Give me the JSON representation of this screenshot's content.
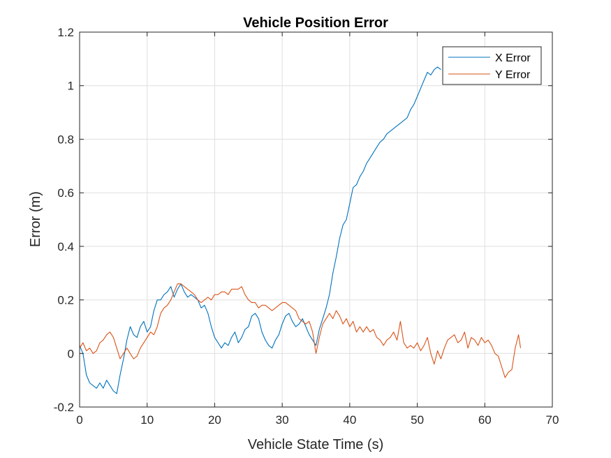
{
  "chart_data": {
    "type": "line",
    "title": "Vehicle Position Error",
    "xlabel": "Vehicle State Time (s)",
    "ylabel": "Error (m)",
    "xlim": [
      0,
      70
    ],
    "ylim": [
      -0.2,
      1.2
    ],
    "xticks": [
      0,
      10,
      20,
      30,
      40,
      50,
      60,
      70
    ],
    "xtick_labels": [
      "0",
      "10",
      "20",
      "30",
      "40",
      "50",
      "60",
      "70"
    ],
    "yticks": [
      -0.2,
      0,
      0.2,
      0.4,
      0.6,
      0.8,
      1,
      1.2
    ],
    "ytick_labels": [
      "-0.2",
      "0",
      "0.2",
      "0.4",
      "0.6",
      "0.8",
      "1",
      "1.2"
    ],
    "grid": true,
    "legend_position": "top-right",
    "series": [
      {
        "name": "X Error",
        "color": "#0072BD",
        "points": [
          [
            0,
            0.03
          ],
          [
            0.5,
            0.0
          ],
          [
            1,
            -0.08
          ],
          [
            1.5,
            -0.11
          ],
          [
            2,
            -0.12
          ],
          [
            2.5,
            -0.13
          ],
          [
            3,
            -0.11
          ],
          [
            3.5,
            -0.13
          ],
          [
            4,
            -0.1
          ],
          [
            4.5,
            -0.12
          ],
          [
            5,
            -0.14
          ],
          [
            5.5,
            -0.15
          ],
          [
            6,
            -0.08
          ],
          [
            6.5,
            -0.02
          ],
          [
            7,
            0.05
          ],
          [
            7.5,
            0.1
          ],
          [
            8,
            0.07
          ],
          [
            8.5,
            0.06
          ],
          [
            9,
            0.1
          ],
          [
            9.5,
            0.12
          ],
          [
            10,
            0.08
          ],
          [
            10.5,
            0.1
          ],
          [
            11,
            0.16
          ],
          [
            11.5,
            0.2
          ],
          [
            12,
            0.2
          ],
          [
            12.5,
            0.22
          ],
          [
            13,
            0.23
          ],
          [
            13.5,
            0.25
          ],
          [
            14,
            0.21
          ],
          [
            14.5,
            0.24
          ],
          [
            15,
            0.26
          ],
          [
            15.5,
            0.23
          ],
          [
            16,
            0.21
          ],
          [
            16.5,
            0.22
          ],
          [
            17,
            0.21
          ],
          [
            17.5,
            0.2
          ],
          [
            18,
            0.17
          ],
          [
            18.5,
            0.18
          ],
          [
            19,
            0.15
          ],
          [
            19.5,
            0.1
          ],
          [
            20,
            0.06
          ],
          [
            20.5,
            0.04
          ],
          [
            21,
            0.02
          ],
          [
            21.5,
            0.04
          ],
          [
            22,
            0.03
          ],
          [
            22.5,
            0.06
          ],
          [
            23,
            0.08
          ],
          [
            23.5,
            0.04
          ],
          [
            24,
            0.06
          ],
          [
            24.5,
            0.09
          ],
          [
            25,
            0.1
          ],
          [
            25.5,
            0.14
          ],
          [
            26,
            0.15
          ],
          [
            26.5,
            0.13
          ],
          [
            27,
            0.08
          ],
          [
            27.5,
            0.05
          ],
          [
            28,
            0.03
          ],
          [
            28.5,
            0.02
          ],
          [
            29,
            0.05
          ],
          [
            29.5,
            0.07
          ],
          [
            30,
            0.11
          ],
          [
            30.5,
            0.14
          ],
          [
            31,
            0.15
          ],
          [
            31.5,
            0.12
          ],
          [
            32,
            0.1
          ],
          [
            32.5,
            0.11
          ],
          [
            33,
            0.13
          ],
          [
            33.5,
            0.1
          ],
          [
            34,
            0.07
          ],
          [
            34.5,
            0.05
          ],
          [
            35,
            0.03
          ],
          [
            35.5,
            0.09
          ],
          [
            36,
            0.13
          ],
          [
            36.5,
            0.17
          ],
          [
            37,
            0.22
          ],
          [
            37.5,
            0.3
          ],
          [
            38,
            0.36
          ],
          [
            38.5,
            0.43
          ],
          [
            39,
            0.48
          ],
          [
            39.5,
            0.5
          ],
          [
            40,
            0.56
          ],
          [
            40.5,
            0.62
          ],
          [
            41,
            0.63
          ],
          [
            41.5,
            0.66
          ],
          [
            42,
            0.68
          ],
          [
            42.5,
            0.71
          ],
          [
            43,
            0.73
          ],
          [
            43.5,
            0.75
          ],
          [
            44,
            0.77
          ],
          [
            44.5,
            0.79
          ],
          [
            45,
            0.8
          ],
          [
            45.5,
            0.82
          ],
          [
            46,
            0.83
          ],
          [
            46.5,
            0.84
          ],
          [
            47,
            0.85
          ],
          [
            47.5,
            0.86
          ],
          [
            48,
            0.87
          ],
          [
            48.5,
            0.88
          ],
          [
            49,
            0.91
          ],
          [
            49.5,
            0.93
          ],
          [
            50,
            0.96
          ],
          [
            50.5,
            0.99
          ],
          [
            51,
            1.02
          ],
          [
            51.5,
            1.05
          ],
          [
            52,
            1.04
          ],
          [
            52.5,
            1.06
          ],
          [
            53,
            1.07
          ],
          [
            53.5,
            1.06
          ]
        ]
      },
      {
        "name": "Y Error",
        "color": "#D95319",
        "points": [
          [
            0,
            0.02
          ],
          [
            0.5,
            0.04
          ],
          [
            1,
            0.01
          ],
          [
            1.5,
            0.02
          ],
          [
            2,
            0.0
          ],
          [
            2.5,
            0.01
          ],
          [
            3,
            0.04
          ],
          [
            3.5,
            0.05
          ],
          [
            4,
            0.07
          ],
          [
            4.5,
            0.08
          ],
          [
            5,
            0.06
          ],
          [
            5.5,
            0.02
          ],
          [
            6,
            -0.02
          ],
          [
            6.5,
            0.0
          ],
          [
            7,
            0.02
          ],
          [
            7.5,
            0.0
          ],
          [
            8,
            -0.02
          ],
          [
            8.5,
            -0.01
          ],
          [
            9,
            0.02
          ],
          [
            9.5,
            0.04
          ],
          [
            10,
            0.06
          ],
          [
            10.5,
            0.08
          ],
          [
            11,
            0.07
          ],
          [
            11.5,
            0.1
          ],
          [
            12,
            0.15
          ],
          [
            12.5,
            0.17
          ],
          [
            13,
            0.18
          ],
          [
            13.5,
            0.2
          ],
          [
            14,
            0.23
          ],
          [
            14.5,
            0.26
          ],
          [
            15,
            0.26
          ],
          [
            15.5,
            0.25
          ],
          [
            16,
            0.24
          ],
          [
            16.5,
            0.23
          ],
          [
            17,
            0.22
          ],
          [
            17.5,
            0.2
          ],
          [
            18,
            0.19
          ],
          [
            18.5,
            0.2
          ],
          [
            19,
            0.21
          ],
          [
            19.5,
            0.2
          ],
          [
            20,
            0.22
          ],
          [
            20.5,
            0.22
          ],
          [
            21,
            0.23
          ],
          [
            21.5,
            0.23
          ],
          [
            22,
            0.22
          ],
          [
            22.5,
            0.24
          ],
          [
            23,
            0.24
          ],
          [
            23.5,
            0.24
          ],
          [
            24,
            0.25
          ],
          [
            24.5,
            0.22
          ],
          [
            25,
            0.2
          ],
          [
            25.5,
            0.19
          ],
          [
            26,
            0.19
          ],
          [
            26.5,
            0.17
          ],
          [
            27,
            0.18
          ],
          [
            27.5,
            0.18
          ],
          [
            28,
            0.17
          ],
          [
            28.5,
            0.16
          ],
          [
            29,
            0.17
          ],
          [
            29.5,
            0.18
          ],
          [
            30,
            0.19
          ],
          [
            30.5,
            0.19
          ],
          [
            31,
            0.18
          ],
          [
            31.5,
            0.17
          ],
          [
            32,
            0.16
          ],
          [
            32.5,
            0.13
          ],
          [
            33,
            0.12
          ],
          [
            33.5,
            0.11
          ],
          [
            34,
            0.12
          ],
          [
            34.5,
            0.08
          ],
          [
            35,
            0.0
          ],
          [
            35.5,
            0.06
          ],
          [
            36,
            0.11
          ],
          [
            36.5,
            0.13
          ],
          [
            37,
            0.15
          ],
          [
            37.5,
            0.13
          ],
          [
            38,
            0.16
          ],
          [
            38.5,
            0.14
          ],
          [
            39,
            0.11
          ],
          [
            39.5,
            0.13
          ],
          [
            40,
            0.1
          ],
          [
            40.5,
            0.12
          ],
          [
            41,
            0.08
          ],
          [
            41.5,
            0.1
          ],
          [
            42,
            0.08
          ],
          [
            42.5,
            0.1
          ],
          [
            43,
            0.08
          ],
          [
            43.5,
            0.09
          ],
          [
            44,
            0.06
          ],
          [
            44.5,
            0.05
          ],
          [
            45,
            0.03
          ],
          [
            45.5,
            0.05
          ],
          [
            46,
            0.06
          ],
          [
            46.5,
            0.08
          ],
          [
            47,
            0.05
          ],
          [
            47.5,
            0.12
          ],
          [
            48,
            0.04
          ],
          [
            48.5,
            0.02
          ],
          [
            49,
            0.03
          ],
          [
            49.5,
            0.02
          ],
          [
            50,
            0.04
          ],
          [
            50.5,
            0.01
          ],
          [
            51,
            0.03
          ],
          [
            51.5,
            0.06
          ],
          [
            52,
            0.0
          ],
          [
            52.5,
            -0.04
          ],
          [
            53,
            0.01
          ],
          [
            53.5,
            -0.02
          ],
          [
            54,
            0.02
          ],
          [
            54.5,
            0.05
          ],
          [
            55,
            0.06
          ],
          [
            55.5,
            0.07
          ],
          [
            56,
            0.04
          ],
          [
            56.5,
            0.05
          ],
          [
            57,
            0.08
          ],
          [
            57.5,
            0.02
          ],
          [
            58,
            0.06
          ],
          [
            58.5,
            0.05
          ],
          [
            59,
            0.03
          ],
          [
            59.5,
            0.06
          ],
          [
            60,
            0.04
          ],
          [
            60.5,
            0.05
          ],
          [
            61,
            0.03
          ],
          [
            61.5,
            0.0
          ],
          [
            62,
            -0.01
          ],
          [
            62.5,
            -0.05
          ],
          [
            63,
            -0.09
          ],
          [
            63.5,
            -0.07
          ],
          [
            64,
            -0.06
          ],
          [
            64.5,
            0.02
          ],
          [
            65,
            0.07
          ],
          [
            65.3,
            0.02
          ]
        ]
      }
    ]
  }
}
